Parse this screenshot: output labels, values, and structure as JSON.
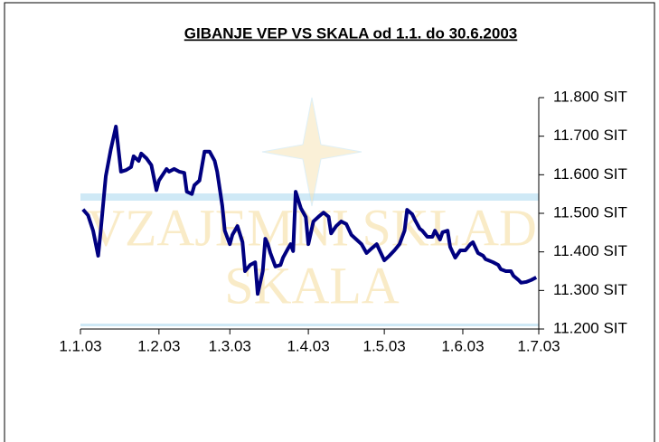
{
  "chart_data": {
    "type": "line",
    "title": "GIBANJE VEP VS SKALA od 1.1. do 30.6.2003",
    "watermark": [
      "VZAJEMNI SKLAD",
      "SKALA"
    ],
    "x": [
      "2003-01-02",
      "2003-01-04",
      "2003-01-06",
      "2003-01-08",
      "2003-01-09",
      "2003-01-11",
      "2003-01-13",
      "2003-01-15",
      "2003-01-17",
      "2003-01-19",
      "2003-01-21",
      "2003-01-22",
      "2003-01-24",
      "2003-01-25",
      "2003-01-27",
      "2003-01-29",
      "2003-01-31",
      "2003-02-01",
      "2003-02-04",
      "2003-02-05",
      "2003-02-07",
      "2003-02-09",
      "2003-02-11",
      "2003-02-12",
      "2003-02-14",
      "2003-02-15",
      "2003-02-17",
      "2003-02-19",
      "2003-02-21",
      "2003-02-23",
      "2003-02-24",
      "2003-02-26",
      "2003-02-27",
      "2003-03-01",
      "2003-03-02",
      "2003-03-04",
      "2003-03-06",
      "2003-03-07",
      "2003-03-09",
      "2003-03-11",
      "2003-03-12",
      "2003-03-14",
      "2003-03-15",
      "2003-03-16",
      "2003-03-17",
      "2003-03-19",
      "2003-03-21",
      "2003-03-22",
      "2003-03-24",
      "2003-03-25",
      "2003-03-26",
      "2003-03-27",
      "2003-03-29",
      "2003-03-31",
      "2003-04-01",
      "2003-04-03",
      "2003-04-05",
      "2003-04-07",
      "2003-04-09",
      "2003-04-10",
      "2003-04-12",
      "2003-04-14",
      "2003-04-16",
      "2003-04-18",
      "2003-04-20",
      "2003-04-22",
      "2003-04-24",
      "2003-04-26",
      "2003-04-28",
      "2003-04-29",
      "2003-05-01",
      "2003-05-03",
      "2003-05-05",
      "2003-05-07",
      "2003-05-09",
      "2003-05-10",
      "2003-05-12",
      "2003-05-13",
      "2003-05-15",
      "2003-05-16",
      "2003-05-18",
      "2003-05-20",
      "2003-05-21",
      "2003-05-23",
      "2003-05-24",
      "2003-05-26",
      "2003-05-27",
      "2003-05-29",
      "2003-05-31",
      "2003-06-02",
      "2003-06-04",
      "2003-06-05",
      "2003-06-07",
      "2003-06-09",
      "2003-06-10",
      "2003-06-13",
      "2003-06-15",
      "2003-06-16",
      "2003-06-18",
      "2003-06-20",
      "2003-06-21",
      "2003-06-23",
      "2003-06-24",
      "2003-06-26",
      "2003-06-28",
      "2003-06-30"
    ],
    "series": [
      {
        "name": "VEP",
        "color": "#000080",
        "values": [
          11510,
          11495,
          11455,
          11390,
          11455,
          11596,
          11666,
          11725,
          11608,
          11612,
          11620,
          11648,
          11636,
          11655,
          11643,
          11625,
          11560,
          11585,
          11615,
          11608,
          11615,
          11608,
          11605,
          11556,
          11550,
          11573,
          11585,
          11660,
          11660,
          11636,
          11608,
          11520,
          11455,
          11420,
          11444,
          11467,
          11425,
          11350,
          11366,
          11373,
          11291,
          11350,
          11434,
          11420,
          11397,
          11362,
          11366,
          11385,
          11409,
          11420,
          11402,
          11556,
          11514,
          11490,
          11420,
          11479,
          11491,
          11502,
          11491,
          11448,
          11467,
          11479,
          11472,
          11444,
          11432,
          11420,
          11397,
          11409,
          11420,
          11406,
          11378,
          11390,
          11404,
          11420,
          11455,
          11509,
          11498,
          11484,
          11460,
          11455,
          11439,
          11439,
          11455,
          11432,
          11451,
          11455,
          11413,
          11385,
          11404,
          11404,
          11420,
          11425,
          11397,
          11390,
          11381,
          11373,
          11366,
          11355,
          11350,
          11350,
          11338,
          11327,
          11320,
          11322,
          11327,
          11334
        ]
      }
    ],
    "xlim": [
      "2003-01-01",
      "2003-07-01"
    ],
    "xticks": [
      {
        "value": "2003-01-01",
        "label": "1.1.03"
      },
      {
        "value": "2003-02-01",
        "label": "1.2.03"
      },
      {
        "value": "2003-03-01",
        "label": "1.3.03"
      },
      {
        "value": "2003-04-01",
        "label": "1.4.03"
      },
      {
        "value": "2003-05-01",
        "label": "1.5.03"
      },
      {
        "value": "2003-06-01",
        "label": "1.6.03"
      },
      {
        "value": "2003-07-01",
        "label": "1.7.03"
      }
    ],
    "ylim": [
      11200,
      11800
    ],
    "yticks": [
      {
        "value": 11200,
        "label": "11.200 SIT"
      },
      {
        "value": 11300,
        "label": "11.300 SIT"
      },
      {
        "value": 11400,
        "label": "11.400 SIT"
      },
      {
        "value": 11500,
        "label": "11.500 SIT"
      },
      {
        "value": 11600,
        "label": "11.600 SIT"
      },
      {
        "value": 11700,
        "label": "11.700 SIT"
      },
      {
        "value": 11800,
        "label": "11.800 SIT"
      }
    ],
    "yaxis_side": "right",
    "grid": false
  }
}
